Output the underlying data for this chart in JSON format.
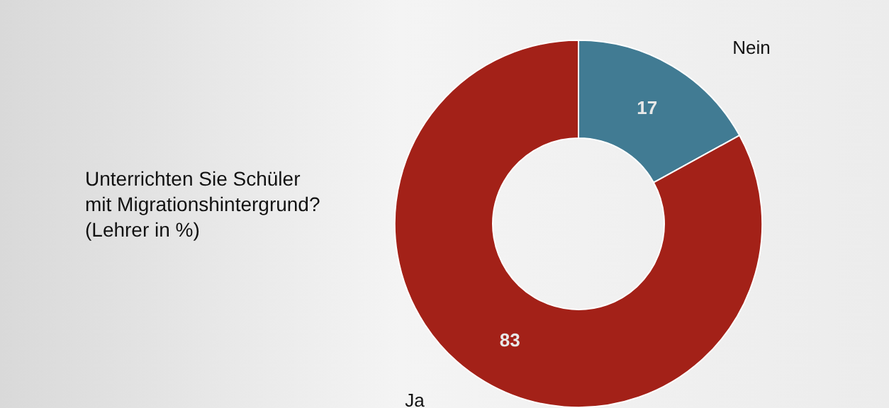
{
  "chart_data": {
    "type": "donut",
    "title": "Unterrichten Sie Schüler\nmit Migrationshintergrund?\n(Lehrer in %)",
    "categories": [
      "Nein",
      "Ja"
    ],
    "values": [
      17,
      83
    ],
    "colors": [
      "#417b93",
      "#a32118"
    ],
    "data_labels": true,
    "legend": false
  }
}
